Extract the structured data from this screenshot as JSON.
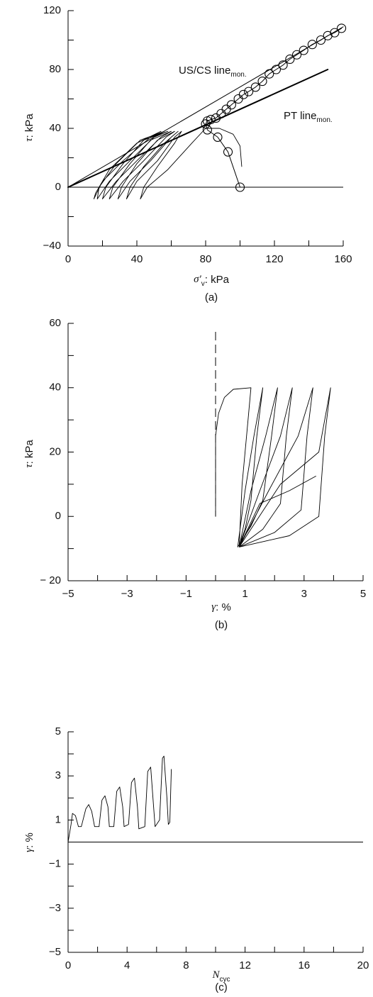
{
  "chart_data": [
    {
      "type": "line",
      "xlabel": {
        "main": "σ′",
        "sub": "v",
        "rest": ": kPa"
      },
      "ylabel": {
        "main": "τ",
        "rest": ": kPa"
      },
      "caption": "(a)",
      "annotations": [
        {
          "text": "US/CS line",
          "sub": "mon."
        },
        {
          "text": "PT line",
          "sub": "mon."
        }
      ],
      "xlim": [
        0,
        160
      ],
      "ylim": [
        -40,
        120
      ],
      "xticks": [
        0,
        40,
        80,
        120,
        160
      ],
      "xminorticks": [
        20,
        60,
        100,
        140
      ],
      "yticks": [
        {
          "value": -40,
          "label": "−40"
        },
        0,
        40,
        80,
        120
      ],
      "yminorticks": [
        -20,
        20,
        60,
        100
      ],
      "zero_line": true,
      "series": [
        {
          "color": "#000",
          "width": 1,
          "x": [
            0,
            160
          ],
          "values": [
            0,
            109
          ]
        },
        {
          "color": "#000",
          "width": 2,
          "x": [
            0,
            151
          ],
          "values": [
            0,
            80
          ]
        },
        {
          "color": "#000",
          "width": 1,
          "markers": "circle",
          "x": [
            100,
            93,
            87,
            81,
            80,
            81,
            83,
            86,
            89,
            92,
            95,
            99,
            102,
            105,
            109,
            113,
            117,
            121,
            125,
            129,
            133,
            137,
            142,
            147,
            151,
            155,
            159
          ],
          "values": [
            0,
            24,
            34,
            39,
            43,
            45,
            46,
            47,
            50,
            53,
            56,
            60,
            63,
            65,
            68,
            72,
            77,
            80,
            83,
            87,
            90,
            93,
            97,
            100,
            103,
            105,
            108
          ]
        },
        {
          "color": "#000",
          "width": 0.9,
          "x": [
            101,
            100,
            96,
            88,
            80,
            72,
            58,
            46,
            42,
            44,
            52,
            62,
            66,
            62,
            52,
            40,
            34,
            36,
            44,
            56,
            64,
            60,
            48,
            36,
            29,
            31,
            40,
            52,
            62,
            57,
            44,
            32,
            24,
            26,
            36,
            48,
            60,
            54,
            40,
            28,
            20,
            22,
            32,
            44,
            58,
            50,
            36,
            24,
            17,
            18,
            28,
            42,
            56,
            48,
            32,
            20,
            15,
            16,
            24,
            40,
            54
          ],
          "values": [
            14,
            28,
            36,
            40,
            40,
            30,
            12,
            0,
            -8,
            0,
            14,
            30,
            38,
            34,
            18,
            4,
            -8,
            0,
            14,
            30,
            38,
            34,
            18,
            4,
            -8,
            0,
            16,
            32,
            38,
            34,
            18,
            4,
            -8,
            0,
            16,
            32,
            38,
            34,
            18,
            4,
            -8,
            0,
            16,
            32,
            38,
            34,
            18,
            4,
            -8,
            0,
            16,
            32,
            38,
            34,
            18,
            4,
            -8,
            -4,
            12,
            30,
            38
          ]
        }
      ]
    },
    {
      "type": "line",
      "xlabel": {
        "main": "γ",
        "rest": ": %"
      },
      "ylabel": {
        "main": "τ",
        "rest": ": kPa"
      },
      "caption": "(b)",
      "xlim": [
        -5,
        5
      ],
      "ylim": [
        -20,
        60
      ],
      "xticks": [
        {
          "value": -5,
          "label": "−5"
        },
        {
          "value": -3,
          "label": "−3"
        },
        {
          "value": -1,
          "label": "−1"
        },
        1,
        3,
        5
      ],
      "xminorticks": [
        -4,
        -2,
        0,
        2,
        4
      ],
      "yticks": [
        {
          "value": -20,
          "label": "− 20"
        },
        0,
        20,
        40,
        60
      ],
      "yminorticks": [
        -10,
        10,
        30,
        50
      ],
      "vline": 0,
      "series": [
        {
          "color": "#000",
          "width": 0.9,
          "x": [
            0,
            0,
            0.1,
            0.3,
            0.6,
            1.2,
            1.1,
            0.9,
            0.8,
            1,
            1.2,
            1.4,
            1.6,
            1.3,
            1,
            0.75,
            1.2,
            1.6,
            1.9,
            2.1,
            1.7,
            1.2,
            0.8,
            1.6,
            2.2,
            2.4,
            2.6,
            2.2,
            1.5,
            0.8,
            2,
            2.9,
            3.1,
            3.3,
            2.8,
            1.8,
            0.8,
            2.5,
            3.5,
            3.7,
            3.9,
            3.5,
            2.2,
            0.8,
            1.5,
            2.5,
            3.4
          ],
          "values": [
            0,
            25,
            32,
            37,
            39.5,
            40,
            30,
            10,
            -9,
            -4,
            5,
            25,
            40,
            25,
            8,
            -9.5,
            -3,
            5,
            25,
            40,
            25,
            8,
            -9.5,
            -4,
            4,
            25,
            40,
            25,
            8,
            -9.5,
            -5,
            2,
            25,
            40,
            25,
            8,
            -9.5,
            -6,
            0,
            25,
            40,
            20,
            10,
            -9.5,
            4,
            8,
            12.5
          ]
        }
      ]
    },
    {
      "type": "line",
      "xlabel": {
        "main": "N",
        "sub": "cyc"
      },
      "ylabel": {
        "main": "γ",
        "rest": ": %"
      },
      "caption": "(c)",
      "xlim": [
        0,
        20
      ],
      "ylim": [
        -5,
        5
      ],
      "xticks": [
        0,
        4,
        8,
        12,
        16,
        20
      ],
      "xminorticks": [
        2,
        6,
        10,
        14,
        18
      ],
      "yticks": [
        {
          "value": -5,
          "label": "−5"
        },
        {
          "value": -3,
          "label": "−3"
        },
        {
          "value": -1,
          "label": "−1"
        },
        1,
        3,
        5
      ],
      "yminorticks": [
        -4,
        -2,
        0,
        2,
        4
      ],
      "zero_line": true,
      "series": [
        {
          "color": "#000",
          "width": 0.9,
          "x": [
            0,
            0.2,
            0.3,
            0.5,
            0.7,
            0.9,
            1.2,
            1.4,
            1.6,
            1.8,
            2.1,
            2.3,
            2.5,
            2.7,
            2.8,
            3.1,
            3.3,
            3.5,
            3.7,
            3.8,
            4.1,
            4.3,
            4.5,
            4.7,
            4.8,
            5.2,
            5.4,
            5.6,
            5.8,
            5.9,
            6.2,
            6.4,
            6.5,
            6.7,
            6.8,
            6.9,
            7
          ],
          "values": [
            0,
            0.8,
            1.3,
            1.2,
            0.7,
            0.7,
            1.5,
            1.7,
            1.4,
            0.7,
            0.7,
            1.9,
            2.1,
            1.6,
            0.7,
            0.7,
            2.3,
            2.5,
            1.6,
            0.7,
            0.8,
            2.7,
            2.9,
            1.6,
            0.6,
            0.7,
            3.2,
            3.4,
            1.6,
            0.7,
            1,
            3.8,
            3.9,
            2,
            0.8,
            0.9,
            3.3
          ]
        }
      ]
    }
  ]
}
